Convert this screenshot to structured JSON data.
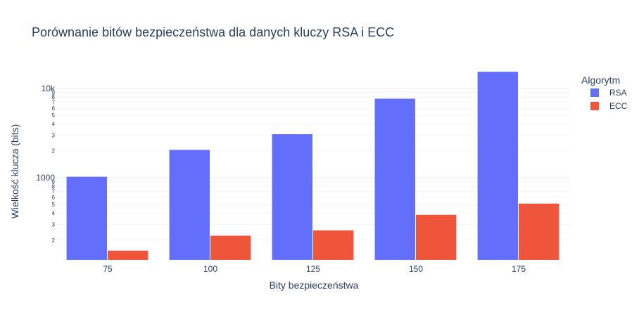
{
  "chart_data": {
    "type": "bar",
    "title": "Porównanie bitów bezpieczeństwa dla danych kluczy RSA i ECC",
    "xlabel": "Bity bezpieczeństwa",
    "ylabel": "Wielkość klucza (bits)",
    "categories": [
      "75",
      "100",
      "125",
      "150",
      "175"
    ],
    "y_scale": "log",
    "ylim": [
      120,
      16000
    ],
    "y_tick_labels": {
      "1000": "1000",
      "10000": "10k",
      "200": "2",
      "300": "3",
      "400": "4",
      "500": "5",
      "600": "6",
      "700": "7",
      "800": "8",
      "900": "9",
      "2000": "2",
      "3000": "3",
      "4000": "4",
      "5000": "5",
      "6000": "6",
      "7000": "7",
      "8000": "8",
      "9000": "9"
    },
    "legend": {
      "title": "Algorytm",
      "placement": "top-right"
    },
    "grid": true,
    "series": [
      {
        "name": "RSA",
        "color": "#636efa",
        "values": [
          1024,
          2048,
          3072,
          7680,
          15360
        ]
      },
      {
        "name": "ECC",
        "color": "#ef553b",
        "values": [
          152,
          224,
          256,
          384,
          512
        ]
      }
    ]
  }
}
